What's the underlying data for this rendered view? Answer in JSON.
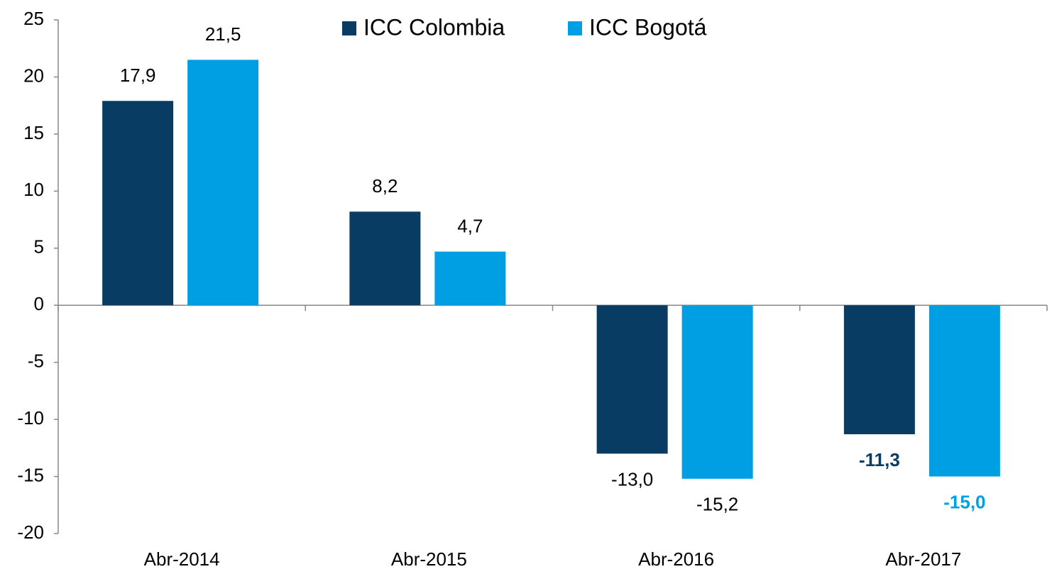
{
  "chart_data": {
    "type": "bar",
    "categories": [
      "Abr-2014",
      "Abr-2015",
      "Abr-2016",
      "Abr-2017"
    ],
    "series": [
      {
        "name": "ICC Colombia",
        "color": "#093c62",
        "values": [
          17.9,
          8.2,
          -13.0,
          -11.3
        ],
        "value_labels": [
          "17,9",
          "8,2",
          "-13,0",
          "-11,3"
        ]
      },
      {
        "name": "ICC Bogotá",
        "color": "#009fe3",
        "values": [
          21.5,
          4.7,
          -15.2,
          -15.0
        ],
        "value_labels": [
          "21,5",
          "4,7",
          "-15,2",
          "-15,0"
        ]
      }
    ],
    "ylim": [
      -20,
      25
    ],
    "yticks": [
      -20,
      -15,
      -10,
      -5,
      0,
      5,
      10,
      15,
      20,
      25
    ],
    "legend": "top",
    "grid": false
  }
}
